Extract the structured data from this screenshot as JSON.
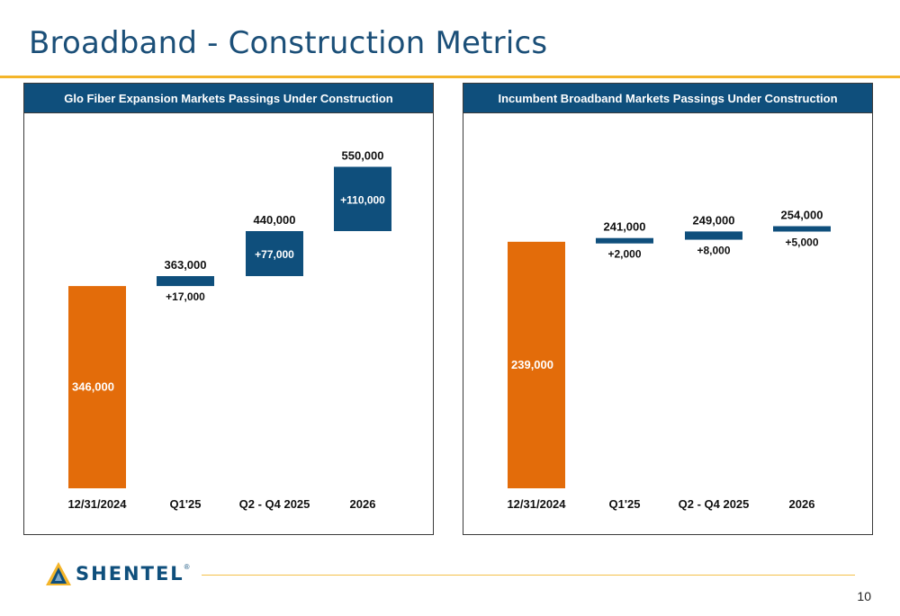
{
  "page": {
    "title": "Broadband - Construction Metrics",
    "page_number": "10",
    "logo_text": "SHENTEL",
    "logo_mark": "®"
  },
  "colors": {
    "orange": "#e36c0a",
    "blue": "#0f4f7c",
    "title": "#1b4f78",
    "accent": "#f4b52a"
  },
  "chart_data": [
    {
      "type": "bar",
      "subtype": "waterfall",
      "title": "Glo Fiber Expansion Markets Passings Under Construction",
      "categories": [
        "12/31/2024",
        "Q1'25",
        "Q2 - Q4 2025",
        "2026"
      ],
      "base": 346000,
      "base_label": "346,000",
      "increments": [
        17000,
        77000,
        110000
      ],
      "increment_labels": [
        "+17,000",
        "+77,000",
        "+110,000"
      ],
      "totals": [
        363000,
        440000,
        550000
      ],
      "total_labels": [
        "363,000",
        "440,000",
        "550,000"
      ],
      "ylim": [
        0,
        600000
      ]
    },
    {
      "type": "bar",
      "subtype": "waterfall",
      "title": "Incumbent Broadband Markets Passings Under Construction",
      "categories": [
        "12/31/2024",
        "Q1'25",
        "Q2 - Q4 2025",
        "2026"
      ],
      "base": 239000,
      "base_label": "239,000",
      "increments": [
        2000,
        8000,
        5000
      ],
      "increment_labels": [
        "+2,000",
        "+8,000",
        "+5,000"
      ],
      "totals": [
        241000,
        249000,
        254000
      ],
      "total_labels": [
        "241,000",
        "249,000",
        "254,000"
      ],
      "ylim": [
        0,
        340000
      ]
    }
  ]
}
